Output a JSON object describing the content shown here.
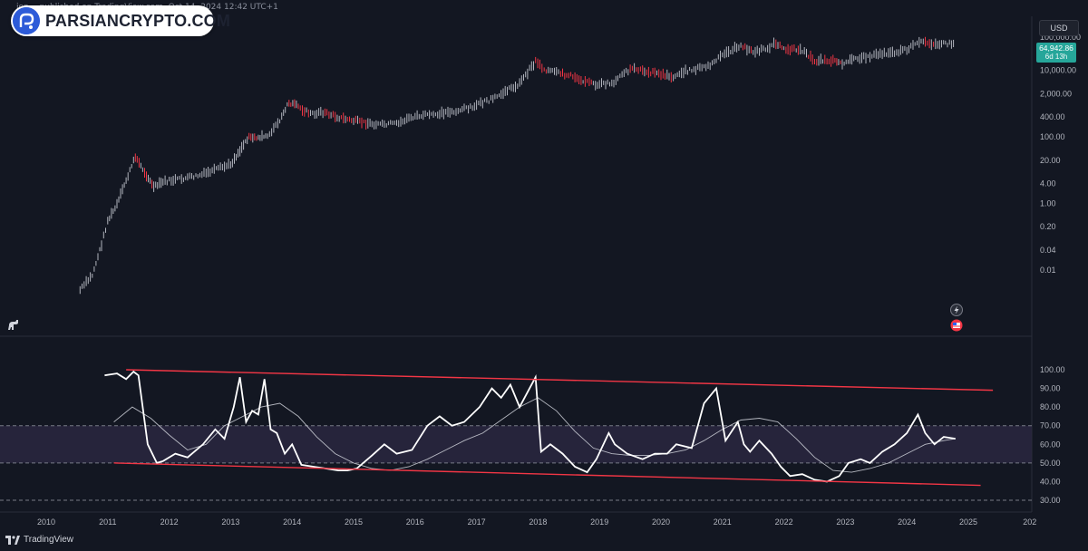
{
  "publish_text": "jon… published on TradingView.com, Oct 14, 2024 12:42 UTC+1",
  "logo": {
    "text": "PARSIANCRYPTO.COM",
    "icon": "parsiancrypto-logo-icon"
  },
  "currency_button": "USD",
  "price_tag": {
    "price": "64,942.86",
    "countdown": "6d 13h",
    "color": "#26a69a"
  },
  "footer": {
    "brand": "TradingView",
    "icon": "tradingview-logo-icon"
  },
  "side_icons": [
    "lightning-icon",
    "us-flag-calendar-icon"
  ],
  "colors": {
    "background": "#131722",
    "bull": "#b2b5be",
    "bear": "#f23645",
    "rsi_line": "#ffffff",
    "rsi_ma": "#d1d4dc",
    "channel": "#f23645",
    "band_fill": "#2a2740"
  },
  "chart_data": [
    {
      "type": "line",
      "scale": "log",
      "price_ticks": [
        "100,000.00",
        "10,000.00",
        "2,000.00",
        "400.00",
        "100.00",
        "20.00",
        "4.00",
        "1.00",
        "0.20",
        "0.04",
        "0.01"
      ],
      "x": [
        2010.55,
        2010.75,
        2010.9,
        2011.0,
        2011.15,
        2011.3,
        2011.45,
        2011.6,
        2011.75,
        2011.9,
        2012.2,
        2012.5,
        2012.8,
        2013.0,
        2013.15,
        2013.3,
        2013.45,
        2013.6,
        2013.8,
        2013.95,
        2014.1,
        2014.3,
        2014.5,
        2014.8,
        2015.1,
        2015.4,
        2015.7,
        2016.0,
        2016.4,
        2016.7,
        2017.0,
        2017.3,
        2017.5,
        2017.7,
        2017.96,
        2018.1,
        2018.3,
        2018.6,
        2018.9,
        2019.2,
        2019.5,
        2019.7,
        2020.0,
        2020.2,
        2020.4,
        2020.6,
        2020.8,
        2021.0,
        2021.3,
        2021.5,
        2021.7,
        2021.87,
        2022.0,
        2022.3,
        2022.5,
        2022.8,
        2022.95,
        2023.2,
        2023.5,
        2023.8,
        2024.0,
        2024.2,
        2024.5,
        2024.79
      ],
      "y": [
        0.0025,
        0.007,
        0.06,
        0.3,
        0.9,
        5,
        25,
        9,
        3,
        4.5,
        5.5,
        7,
        11,
        15,
        40,
        110,
        90,
        110,
        300,
        1100,
        800,
        500,
        550,
        370,
        280,
        240,
        260,
        420,
        500,
        620,
        900,
        1500,
        2500,
        4000,
        19000,
        11000,
        8500,
        6500,
        3800,
        4000,
        11000,
        10000,
        7500,
        6500,
        9500,
        11500,
        14000,
        29000,
        58000,
        35000,
        44000,
        67000,
        45000,
        40000,
        20000,
        19500,
        16500,
        23000,
        30000,
        34000,
        42000,
        70000,
        62000,
        64942.86
      ]
    },
    {
      "type": "line",
      "title": "",
      "x_ticks": [
        "2010",
        "2011",
        "2012",
        "2013",
        "2014",
        "2015",
        "2016",
        "2017",
        "2018",
        "2019",
        "2020",
        "2021",
        "2022",
        "2023",
        "2024",
        "2025",
        "202"
      ],
      "y_ticks": [
        "100.00",
        "90.00",
        "80.00",
        "70.00",
        "60.00",
        "50.00",
        "40.00",
        "30.00"
      ],
      "ylim": [
        30,
        100
      ],
      "band": [
        50,
        70
      ],
      "series": [
        {
          "x": [
            2010.95,
            2011.15,
            2011.3,
            2011.42,
            2011.5,
            2011.65,
            2011.8,
            2011.9,
            2012.1,
            2012.3,
            2012.55,
            2012.75,
            2012.9,
            2013.05,
            2013.15,
            2013.25,
            2013.35,
            2013.45,
            2013.55,
            2013.65,
            2013.75,
            2013.88,
            2014.0,
            2014.15,
            2014.35,
            2014.55,
            2014.75,
            2014.9,
            2015.05,
            2015.3,
            2015.5,
            2015.7,
            2015.95,
            2016.2,
            2016.4,
            2016.6,
            2016.8,
            2017.05,
            2017.25,
            2017.4,
            2017.55,
            2017.7,
            2017.96,
            2018.05,
            2018.2,
            2018.4,
            2018.6,
            2018.8,
            2018.95,
            2019.15,
            2019.25,
            2019.45,
            2019.7,
            2019.9,
            2020.1,
            2020.25,
            2020.5,
            2020.7,
            2020.9,
            2021.05,
            2021.25,
            2021.35,
            2021.45,
            2021.6,
            2021.8,
            2021.95,
            2022.1,
            2022.3,
            2022.5,
            2022.7,
            2022.9,
            2023.05,
            2023.25,
            2023.4,
            2023.6,
            2023.8,
            2024.0,
            2024.18,
            2024.3,
            2024.45,
            2024.6,
            2024.79
          ],
          "y": [
            97,
            98,
            95,
            99,
            97,
            60,
            50,
            51,
            55,
            53,
            60,
            68,
            63,
            80,
            96,
            72,
            78,
            76,
            95,
            68,
            66,
            55,
            60,
            49,
            48,
            47,
            46,
            46,
            47,
            54,
            60,
            55,
            57,
            70,
            75,
            70,
            72,
            80,
            90,
            85,
            92,
            80,
            96,
            56,
            60,
            55,
            48,
            45,
            52,
            66,
            60,
            55,
            52,
            55,
            55,
            60,
            58,
            82,
            90,
            62,
            72,
            60,
            56,
            62,
            55,
            48,
            43,
            44,
            41,
            40,
            43,
            50,
            52,
            50,
            56,
            60,
            66,
            76,
            66,
            60,
            64,
            63
          ]
        },
        {
          "x": [
            2011.1,
            2011.4,
            2011.7,
            2012.0,
            2012.3,
            2012.6,
            2012.9,
            2013.2,
            2013.5,
            2013.8,
            2014.1,
            2014.4,
            2014.7,
            2015.0,
            2015.3,
            2015.6,
            2015.9,
            2016.2,
            2016.5,
            2016.8,
            2017.1,
            2017.4,
            2017.7,
            2018.0,
            2018.3,
            2018.6,
            2018.9,
            2019.2,
            2019.5,
            2019.8,
            2020.1,
            2020.4,
            2020.7,
            2021.0,
            2021.3,
            2021.6,
            2021.9,
            2022.2,
            2022.5,
            2022.8,
            2023.1,
            2023.4,
            2023.7,
            2024.0,
            2024.3,
            2024.6,
            2024.79
          ],
          "y": [
            72,
            80,
            74,
            65,
            57,
            60,
            70,
            75,
            80,
            82,
            75,
            64,
            55,
            50,
            47,
            46,
            48,
            52,
            57,
            62,
            66,
            73,
            80,
            85,
            78,
            67,
            58,
            55,
            54,
            54,
            55,
            57,
            62,
            68,
            73,
            74,
            72,
            63,
            53,
            46,
            45,
            47,
            50,
            55,
            60,
            62,
            63
          ]
        }
      ],
      "channel": [
        {
          "x": [
            2011.3,
            2025.4
          ],
          "y": [
            100,
            89
          ]
        },
        {
          "x": [
            2011.1,
            2025.2
          ],
          "y": [
            50,
            38
          ]
        }
      ]
    }
  ]
}
